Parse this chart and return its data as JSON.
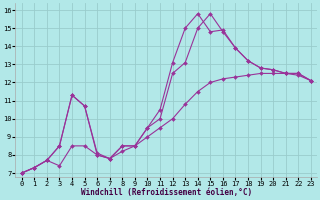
{
  "title": "",
  "xlabel": "Windchill (Refroidissement éolien,°C)",
  "bg_color": "#b2e8e8",
  "grid_color": "#99cccc",
  "line_color": "#993399",
  "xlim": [
    -0.5,
    23.5
  ],
  "ylim": [
    6.8,
    16.4
  ],
  "xticks": [
    0,
    1,
    2,
    3,
    4,
    5,
    6,
    7,
    8,
    9,
    10,
    11,
    12,
    13,
    14,
    15,
    16,
    17,
    18,
    19,
    20,
    21,
    22,
    23
  ],
  "yticks": [
    7,
    8,
    9,
    10,
    11,
    12,
    13,
    14,
    15,
    16
  ],
  "series1": [
    7.0,
    7.3,
    7.7,
    7.4,
    8.5,
    8.5,
    8.0,
    7.8,
    8.2,
    8.5,
    9.0,
    9.5,
    10.0,
    10.8,
    11.5,
    12.0,
    12.2,
    12.3,
    12.4,
    12.5,
    12.5,
    12.5,
    12.4,
    12.1
  ],
  "series2": [
    7.0,
    7.3,
    7.7,
    8.5,
    11.3,
    10.7,
    8.0,
    7.8,
    8.5,
    8.5,
    9.5,
    10.5,
    13.1,
    15.0,
    15.8,
    14.8,
    14.9,
    13.9,
    13.2,
    12.8,
    12.7,
    12.5,
    12.5,
    12.1
  ],
  "series3": [
    7.0,
    7.3,
    7.7,
    8.5,
    11.3,
    10.7,
    8.1,
    7.8,
    8.5,
    8.5,
    9.5,
    10.0,
    12.5,
    13.1,
    15.0,
    15.8,
    14.8,
    13.9,
    13.2,
    12.8,
    12.7,
    12.5,
    12.5,
    12.1
  ],
  "xlabel_color": "#440044",
  "xlabel_fontsize": 5.5,
  "tick_fontsize": 5.0,
  "marker_size": 2.0,
  "linewidth": 0.8
}
